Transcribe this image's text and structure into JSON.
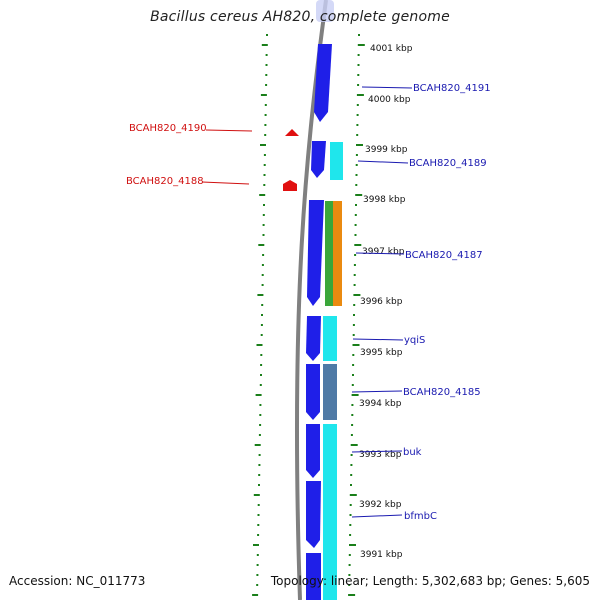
{
  "title": "Bacillus cereus AH820, complete genome",
  "footer": {
    "accession": "Accession: NC_011773",
    "topology": "Topology: linear; Length: 5,302,683 bp; Genes: 5,605"
  },
  "colors": {
    "backbone": "#808080",
    "tick": "#1a7f1a",
    "cds_forward": "#1f1fe8",
    "cds_reverse": "#1fe6ec",
    "trna": "#e01010",
    "label_forward": "#1a1ab0",
    "label_reverse": "#d01010",
    "steel": "#4f7aa6",
    "green": "#3aa63a",
    "orange": "#ea8a10"
  },
  "ruler": [
    {
      "label": "4001 kbp"
    },
    {
      "label": "4000 kbp"
    },
    {
      "label": "3999 kbp"
    },
    {
      "label": "3998 kbp"
    },
    {
      "label": "3997 kbp"
    },
    {
      "label": "3996 kbp"
    },
    {
      "label": "3995 kbp"
    },
    {
      "label": "3994 kbp"
    },
    {
      "label": "3993 kbp"
    },
    {
      "label": "3992 kbp"
    },
    {
      "label": "3991 kbp"
    }
  ],
  "genes_right": [
    {
      "label": "BCAH820_4191"
    },
    {
      "label": "BCAH820_4189"
    },
    {
      "label": "BCAH820_4187"
    },
    {
      "label": "yqiS"
    },
    {
      "label": "BCAH820_4185"
    },
    {
      "label": "buk"
    },
    {
      "label": "bfmbC"
    }
  ],
  "genes_left": [
    {
      "label": "BCAH820_4190"
    },
    {
      "label": "BCAH820_4188"
    }
  ]
}
